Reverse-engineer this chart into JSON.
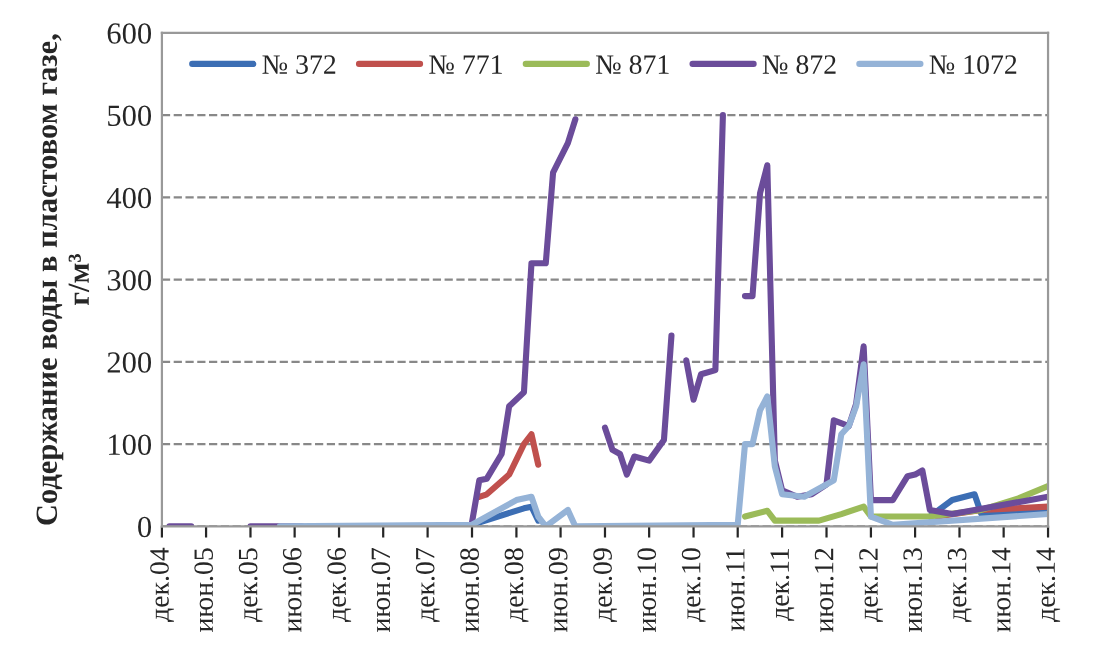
{
  "chart_data": {
    "type": "line",
    "ylabel": "Содержание воды в пластовом газе,\nг/м³",
    "xlim": [
      "2004-12",
      "2014-12"
    ],
    "ylim": [
      0,
      600
    ],
    "yticks": [
      0,
      100,
      200,
      300,
      400,
      500,
      600
    ],
    "xticks": [
      {
        "value": "2004-12",
        "label": "дек.04"
      },
      {
        "value": "2005-06",
        "label": "июн.05"
      },
      {
        "value": "2005-12",
        "label": "дек.05"
      },
      {
        "value": "2006-06",
        "label": "июн.06"
      },
      {
        "value": "2006-12",
        "label": "дек.06"
      },
      {
        "value": "2007-06",
        "label": "июн.07"
      },
      {
        "value": "2007-12",
        "label": "дек.07"
      },
      {
        "value": "2008-06",
        "label": "июн.08"
      },
      {
        "value": "2008-12",
        "label": "дек.08"
      },
      {
        "value": "2009-06",
        "label": "июн.09"
      },
      {
        "value": "2009-12",
        "label": "дек.09"
      },
      {
        "value": "2010-06",
        "label": "июн.10"
      },
      {
        "value": "2010-12",
        "label": "дек.10"
      },
      {
        "value": "2011-06",
        "label": "июн.11"
      },
      {
        "value": "2011-12",
        "label": "дек.11"
      },
      {
        "value": "2012-06",
        "label": "июн.12"
      },
      {
        "value": "2012-12",
        "label": "дек.12"
      },
      {
        "value": "2013-06",
        "label": "июн.13"
      },
      {
        "value": "2013-12",
        "label": "дек.13"
      },
      {
        "value": "2014-06",
        "label": "июн.14"
      },
      {
        "value": "2014-12",
        "label": "дек.14"
      }
    ],
    "grid": "y",
    "line_style": "solid",
    "marker": "none",
    "legend": "top",
    "series": [
      {
        "name": "№ 372",
        "color": "#3c6eb4",
        "x": [
          "2008-06",
          "2009-01",
          "2009-02",
          "2009-03",
          "2009-05",
          "2013-08",
          "2013-11",
          "2014-02",
          "2014-03",
          "2014-12"
        ],
        "values": [
          2,
          22,
          24,
          7,
          null,
          12,
          32,
          39,
          15,
          20
        ]
      },
      {
        "name": "№ 771",
        "color": "#c0504d",
        "x": [
          "2008-07",
          "2008-08",
          "2008-11",
          "2009-01",
          "2009-02",
          "2009-03",
          "2009-05",
          "2013-09",
          "2014-03",
          "2014-12"
        ],
        "values": [
          36,
          39,
          63,
          100,
          112,
          75,
          null,
          12,
          20,
          24
        ]
      },
      {
        "name": "№ 871",
        "color": "#9bbb59",
        "x": [
          "2011-07",
          "2011-10",
          "2011-11",
          "2012-05",
          "2012-08",
          "2012-11",
          "2012-12",
          "2013-08",
          "2014-03",
          "2014-08",
          "2014-12"
        ],
        "values": [
          12,
          19,
          7,
          7,
          15,
          24,
          12,
          12,
          20,
          34,
          49
        ]
      },
      {
        "name": "№ 872",
        "color": "#6b4c9a",
        "x": [
          "2005-01",
          "2005-04",
          "2005-06",
          "2005-12",
          "2006-07",
          "2006-09",
          "2008-06",
          "2008-07",
          "2008-08",
          "2008-10",
          "2008-11",
          "2009-01",
          "2009-02",
          "2009-04",
          "2009-05",
          "2009-07",
          "2009-08",
          "2009-10",
          "2009-12",
          "2010-01",
          "2010-02",
          "2010-03",
          "2010-04",
          "2010-06",
          "2010-08",
          "2010-09",
          "2010-10",
          "2010-11",
          "2010-12",
          "2011-01",
          "2011-03",
          "2011-04",
          "2011-05",
          "2011-07",
          "2011-08",
          "2011-09",
          "2011-10",
          "2011-11",
          "2011-12",
          "2012-02",
          "2012-04",
          "2012-06",
          "2012-07",
          "2012-09",
          "2012-10",
          "2012-11",
          "2012-12",
          "2013-03",
          "2013-05",
          "2013-06",
          "2013-07",
          "2013-08",
          "2013-11",
          "2014-12"
        ],
        "values": [
          0,
          0,
          null,
          0,
          0,
          null,
          5,
          56,
          58,
          88,
          146,
          163,
          320,
          320,
          430,
          466,
          495,
          null,
          120,
          93,
          88,
          63,
          85,
          80,
          105,
          232,
          null,
          202,
          154,
          185,
          190,
          500,
          null,
          280,
          280,
          405,
          439,
          80,
          44,
          36,
          39,
          51,
          129,
          122,
          149,
          219,
          32,
          32,
          61,
          63,
          68,
          20,
          15,
          36
        ]
      },
      {
        "name": "№ 1072",
        "color": "#95b3d7",
        "x": [
          "2006-04",
          "2008-06",
          "2008-12",
          "2009-02",
          "2009-03",
          "2009-04",
          "2009-07",
          "2009-08",
          "2011-06",
          "2011-07",
          "2011-08",
          "2011-09",
          "2011-10",
          "2011-11",
          "2011-12",
          "2012-03",
          "2012-07",
          "2012-08",
          "2012-09",
          "2012-10",
          "2012-11",
          "2012-12",
          "2013-03",
          "2014-12"
        ],
        "values": [
          0,
          2,
          32,
          36,
          12,
          0,
          20,
          0,
          2,
          100,
          100,
          141,
          158,
          73,
          39,
          36,
          56,
          112,
          122,
          146,
          197,
          12,
          2,
          15
        ]
      }
    ]
  }
}
